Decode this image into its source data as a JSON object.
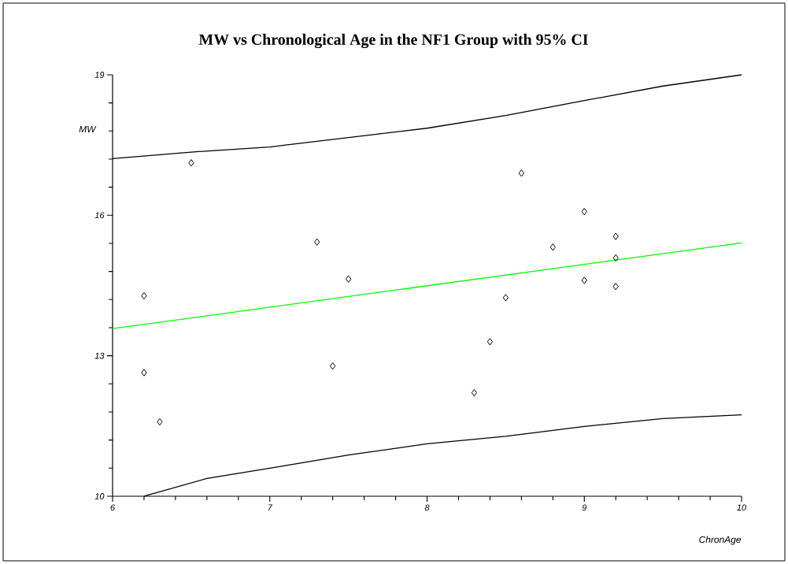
{
  "chart_data": {
    "type": "scatter",
    "title": "MW vs Chronological Age in the NF1 Group with 95% CI",
    "xlabel": "ChronAge",
    "ylabel": "MW",
    "xlim": [
      6,
      10
    ],
    "ylim": [
      10,
      19
    ],
    "xticks": [
      6,
      7,
      8,
      9,
      10
    ],
    "yticks": [
      10,
      13,
      16,
      19
    ],
    "grid": false,
    "marker": "diamond",
    "series": [
      {
        "color": "#000000",
        "x": [
          6.5,
          6.2,
          6.2,
          6.3,
          7.3,
          7.5,
          7.4,
          8.6,
          9.0,
          9.2,
          8.8,
          9.2,
          9.0,
          9.2,
          8.5,
          8.4,
          8.3
        ],
        "values": [
          17.12,
          14.28,
          12.64,
          11.59,
          15.43,
          14.64,
          12.78,
          16.9,
          16.08,
          15.55,
          15.32,
          15.09,
          14.61,
          14.48,
          14.24,
          13.3,
          12.21
        ]
      },
      {
        "type": "line",
        "color": "#00ff00",
        "marker": "none",
        "line_style": "solid",
        "x": [
          6,
          10
        ],
        "values": [
          13.58,
          15.41
        ]
      },
      {
        "type": "line",
        "color": "#000000",
        "marker": "none",
        "line_style": "solid",
        "x": [
          6,
          6.5,
          7,
          7.1,
          8,
          8.5,
          9,
          9.5,
          10
        ],
        "values": [
          17.21,
          17.35,
          17.46,
          17.5,
          17.86,
          18.13,
          18.45,
          18.76,
          19.0
        ]
      },
      {
        "type": "line",
        "color": "#000000",
        "marker": "none",
        "line_style": "solid",
        "x": [
          6.2,
          6.6,
          7,
          7.5,
          8,
          8.5,
          9,
          9.5,
          10
        ],
        "values": [
          10.0,
          10.38,
          10.6,
          10.88,
          11.12,
          11.28,
          11.49,
          11.66,
          11.74
        ]
      }
    ]
  }
}
